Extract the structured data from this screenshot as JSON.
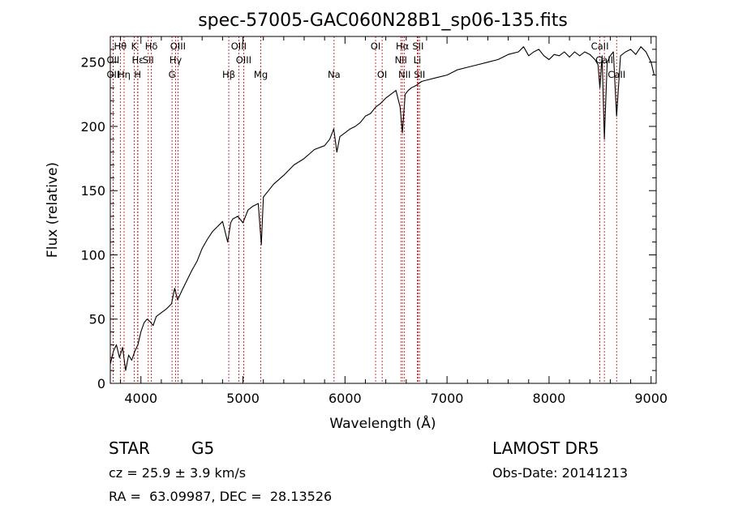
{
  "chart_data": {
    "type": "line",
    "title": "spec-57005-GAC060N28B1_sp06-135.fits",
    "xlabel": "Wavelength (Å)",
    "ylabel": "Flux (relative)",
    "xlim": [
      3700,
      9050
    ],
    "ylim": [
      0,
      270
    ],
    "xticks": [
      4000,
      5000,
      6000,
      7000,
      8000,
      9000
    ],
    "yticks": [
      0,
      50,
      100,
      150,
      200,
      250
    ],
    "grid": false,
    "series": [
      {
        "x": [
          3700,
          3730,
          3760,
          3790,
          3820,
          3850,
          3880,
          3910,
          3940,
          3970,
          4000,
          4030,
          4060,
          4090,
          4120,
          4150,
          4200,
          4250,
          4300,
          4330,
          4360,
          4400,
          4450,
          4500,
          4550,
          4600,
          4650,
          4700,
          4750,
          4800,
          4850,
          4880,
          4900,
          4950,
          5000,
          5050,
          5100,
          5150,
          5180,
          5200,
          5250,
          5300,
          5400,
          5500,
          5600,
          5700,
          5800,
          5850,
          5890,
          5920,
          5950,
          6000,
          6050,
          6100,
          6150,
          6200,
          6250,
          6300,
          6350,
          6400,
          6450,
          6500,
          6540,
          6563,
          6590,
          6620,
          6650,
          6700,
          6750,
          6800,
          6900,
          7000,
          7100,
          7200,
          7300,
          7400,
          7500,
          7600,
          7700,
          7750,
          7800,
          7850,
          7900,
          7950,
          8000,
          8050,
          8100,
          8150,
          8200,
          8250,
          8300,
          8350,
          8400,
          8450,
          8480,
          8498,
          8520,
          8542,
          8570,
          8600,
          8630,
          8662,
          8700,
          8750,
          8800,
          8850,
          8900,
          8950,
          9000,
          9030
        ],
        "values": [
          15,
          25,
          30,
          20,
          28,
          10,
          22,
          18,
          25,
          30,
          40,
          47,
          50,
          48,
          45,
          52,
          55,
          58,
          62,
          74,
          65,
          72,
          80,
          88,
          95,
          105,
          112,
          118,
          122,
          126,
          110,
          125,
          128,
          130,
          125,
          135,
          138,
          140,
          108,
          145,
          150,
          155,
          162,
          170,
          175,
          182,
          185,
          190,
          198,
          180,
          192,
          195,
          198,
          200,
          203,
          208,
          210,
          215,
          218,
          222,
          225,
          228,
          215,
          195,
          225,
          228,
          230,
          232,
          235,
          236,
          238,
          240,
          244,
          246,
          248,
          250,
          252,
          256,
          258,
          262,
          255,
          258,
          260,
          255,
          252,
          256,
          255,
          258,
          254,
          258,
          255,
          258,
          256,
          252,
          248,
          230,
          255,
          190,
          250,
          255,
          258,
          208,
          255,
          258,
          260,
          256,
          262,
          258,
          250,
          240
        ]
      }
    ],
    "spectral_lines": [
      {
        "label": "Hθ",
        "x": 3798,
        "row": 0
      },
      {
        "label": "K",
        "x": 3934,
        "row": 0
      },
      {
        "label": "Hδ",
        "x": 4102,
        "row": 0
      },
      {
        "label": "OIII",
        "x": 4363,
        "row": 0
      },
      {
        "label": "OIII",
        "x": 4959,
        "row": 0
      },
      {
        "label": "OI",
        "x": 6300,
        "row": 0
      },
      {
        "label": "Hα",
        "x": 6563,
        "row": 0
      },
      {
        "label": "SII",
        "x": 6716,
        "row": 0
      },
      {
        "label": "CaII",
        "x": 8498,
        "row": 0
      },
      {
        "label": "OII",
        "x": 3727,
        "row": 1
      },
      {
        "label": "Hε",
        "x": 3970,
        "row": 1
      },
      {
        "label": "SII",
        "x": 4072,
        "row": 1
      },
      {
        "label": "Hγ",
        "x": 4340,
        "row": 1
      },
      {
        "label": "OIII",
        "x": 5007,
        "row": 1
      },
      {
        "label": "NII",
        "x": 6548,
        "row": 1
      },
      {
        "label": "Li",
        "x": 6708,
        "row": 1
      },
      {
        "label": "CaII",
        "x": 8542,
        "row": 1
      },
      {
        "label": "OII",
        "x": 3727,
        "row": 2
      },
      {
        "label": "Hη",
        "x": 3835,
        "row": 2
      },
      {
        "label": "H",
        "x": 3968,
        "row": 2
      },
      {
        "label": "G",
        "x": 4305,
        "row": 2
      },
      {
        "label": "Hβ",
        "x": 4861,
        "row": 2
      },
      {
        "label": "Mg",
        "x": 5175,
        "row": 2
      },
      {
        "label": "Na",
        "x": 5893,
        "row": 2
      },
      {
        "label": "OI",
        "x": 6364,
        "row": 2
      },
      {
        "label": "NII",
        "x": 6583,
        "row": 2
      },
      {
        "label": "SII",
        "x": 6731,
        "row": 2
      },
      {
        "label": "CaII",
        "x": 8662,
        "row": 2
      }
    ],
    "line_color": "#000000",
    "marker_color": "#cc0000"
  },
  "info": {
    "object_class": "STAR",
    "subclass": "G5",
    "survey": "LAMOST DR5",
    "redshift": "cz = 25.9 ± 3.9 km/s",
    "obs_date": "Obs-Date: 20141213",
    "coords": "RA =  63.09987, DEC =  28.13526"
  }
}
